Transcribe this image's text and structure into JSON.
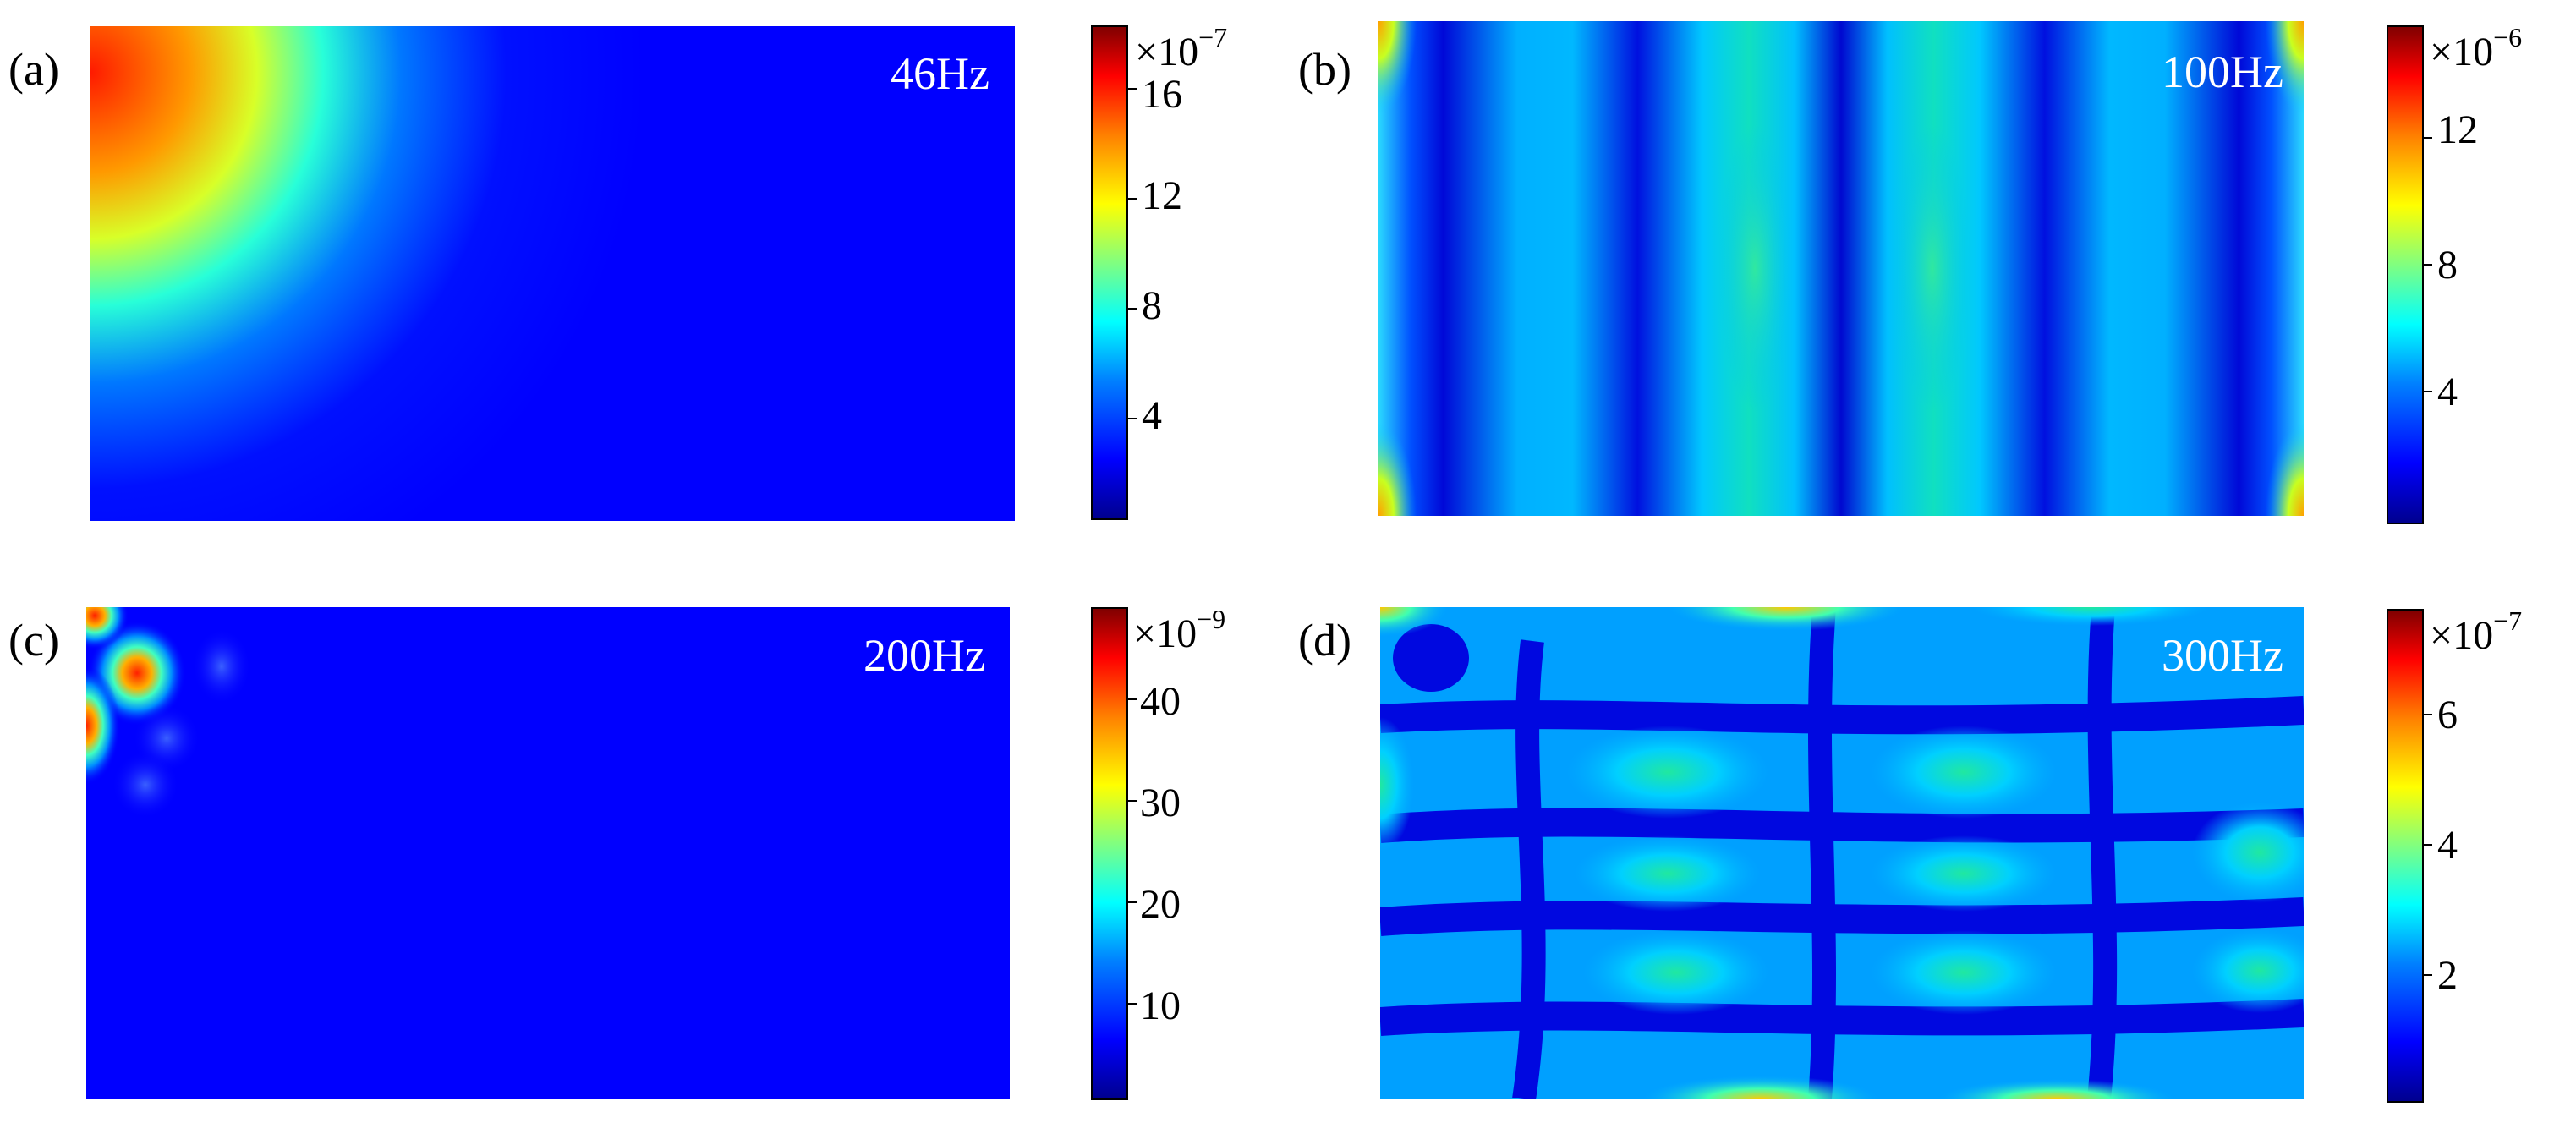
{
  "chart_data": [
    {
      "type": "heatmap",
      "panel": "(a)",
      "frequency": "46Hz",
      "colorbar": {
        "multiplier": "×10",
        "exponent": "−7",
        "ticks": [
          "4",
          "8",
          "12",
          "16"
        ],
        "tick_values": [
          4,
          8,
          12,
          16
        ],
        "range": [
          0,
          18
        ]
      },
      "pattern": "single lobe in top-left corner"
    },
    {
      "type": "heatmap",
      "panel": "(b)",
      "frequency": "100Hz",
      "colorbar": {
        "multiplier": "×10",
        "exponent": "−6",
        "ticks": [
          "4",
          "8",
          "12"
        ],
        "tick_values": [
          4,
          8,
          12
        ],
        "range": [
          0,
          15
        ]
      },
      "pattern": "vertical standing-wave bands"
    },
    {
      "type": "heatmap",
      "panel": "(c)",
      "frequency": "200Hz",
      "colorbar": {
        "multiplier": "×10",
        "exponent": "−9",
        "ticks": [
          "10",
          "20",
          "30",
          "40"
        ],
        "tick_values": [
          10,
          20,
          30,
          40
        ],
        "range": [
          0,
          47
        ]
      },
      "pattern": "localized lobes near left edge"
    },
    {
      "type": "heatmap",
      "panel": "(d)",
      "frequency": "300Hz",
      "colorbar": {
        "multiplier": "×10",
        "exponent": "−7",
        "ticks": [
          "2",
          "4",
          "6"
        ],
        "tick_values": [
          2,
          4,
          6
        ],
        "range": [
          0,
          7.5
        ]
      },
      "pattern": "grid of oval lobes"
    }
  ],
  "colors": {
    "low": "#0000ff",
    "high": "#ff0000"
  }
}
